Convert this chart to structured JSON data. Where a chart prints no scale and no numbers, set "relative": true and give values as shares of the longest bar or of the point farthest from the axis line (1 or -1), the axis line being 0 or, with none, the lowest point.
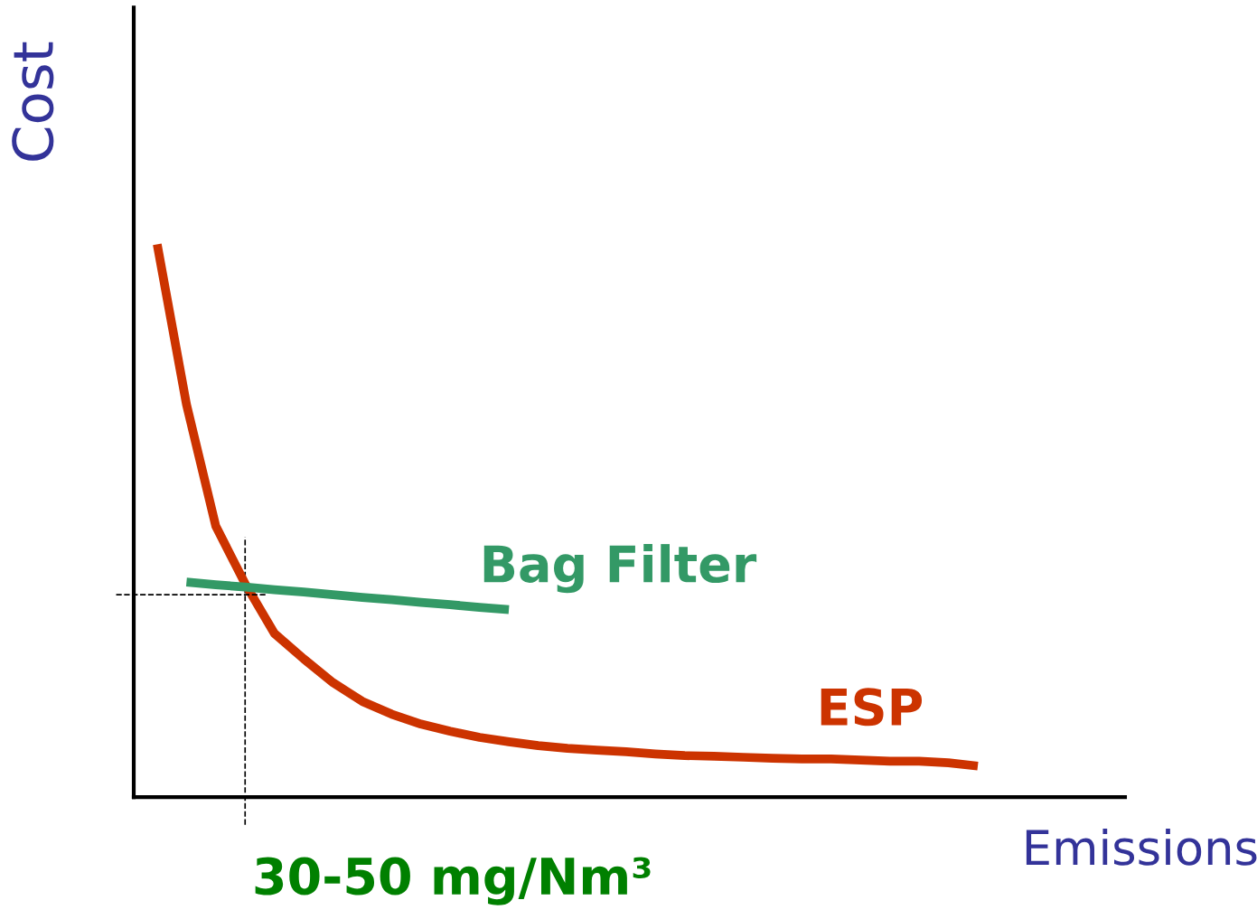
{
  "chart_data": {
    "type": "line",
    "relative": true,
    "xlabel": "Emissions",
    "ylabel": "Cost",
    "categories": [
      null,
      null,
      null,
      null,
      null,
      null,
      null,
      null,
      null,
      null,
      null,
      null,
      null,
      null,
      null,
      null,
      null,
      null,
      null,
      null,
      null,
      null,
      null,
      null,
      null,
      null,
      null,
      null,
      null
    ],
    "series": [
      {
        "name": "ESP",
        "color": "#cc3300",
        "values": [
          1.0,
          0.71,
          0.49,
          0.386,
          0.296,
          0.25,
          0.207,
          0.173,
          0.15,
          0.132,
          0.119,
          0.108,
          0.1,
          0.093,
          0.088,
          0.085,
          0.082,
          0.078,
          0.075,
          0.074,
          0.072,
          0.07,
          0.069,
          0.069,
          0.067,
          0.065,
          0.065,
          0.062,
          0.056
        ]
      },
      {
        "name": "Bag Filter",
        "color": "#339966",
        "values": [
          null,
          0.389,
          0.384,
          0.38,
          0.375,
          0.371,
          0.366,
          0.361,
          0.357,
          0.352,
          0.348,
          0.343,
          0.339,
          null,
          null,
          null,
          null,
          null,
          null,
          null,
          null,
          null,
          null,
          null,
          null,
          null,
          null,
          null,
          null
        ]
      }
    ],
    "ref_lines": [
      {
        "axis": "y",
        "value": 0.366,
        "color": "#000000",
        "line_style": "dashed"
      }
    ],
    "annotations": [
      "30-50 mg/Nm³"
    ],
    "grid": false,
    "legend": false,
    "marker": "none",
    "line_style": "solid"
  }
}
